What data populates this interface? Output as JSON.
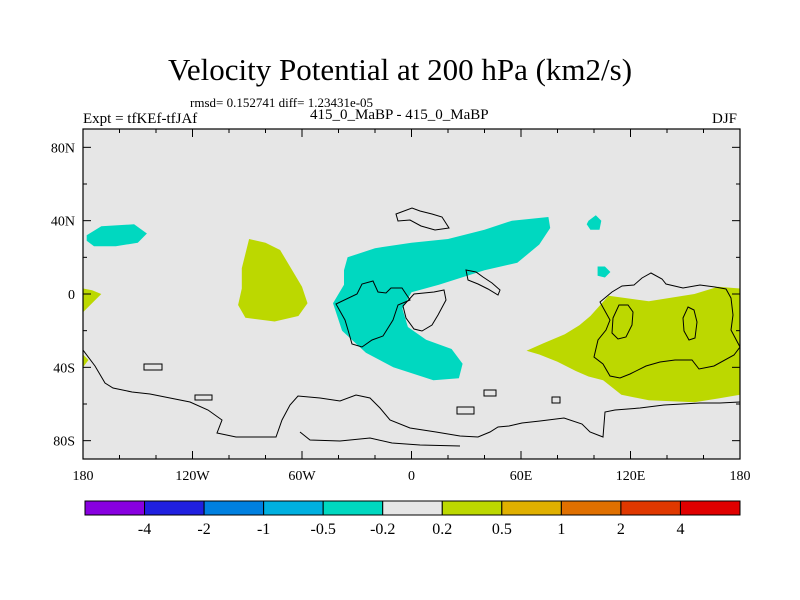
{
  "title": "Velocity Potential at 200 hPa (km2/s)",
  "stats": "rmsd= 0.152741  diff= 1.23431e-05",
  "left_label": "Expt = tfKEf-tfJAf",
  "center_label": "415_0_MaBP - 415_0_MaBP",
  "right_label": "DJF",
  "colors": {
    "background": "#e6e6e6",
    "cyan": "#00d8c0",
    "lime": "#bcd800"
  },
  "chart_data": {
    "type": "heatmap",
    "title": "Velocity Potential at 200 hPa (km2/s)",
    "projection": "cylindrical equidistant",
    "xlim": [
      -180,
      180
    ],
    "ylim": [
      -90,
      90
    ],
    "x_ticks": [
      {
        "value": -180,
        "label": "180"
      },
      {
        "value": -120,
        "label": "120W"
      },
      {
        "value": -60,
        "label": "60W"
      },
      {
        "value": 0,
        "label": "0"
      },
      {
        "value": 60,
        "label": "60E"
      },
      {
        "value": 120,
        "label": "120E"
      },
      {
        "value": 180,
        "label": "180"
      }
    ],
    "y_ticks": [
      {
        "value": 80,
        "label": "80N"
      },
      {
        "value": 40,
        "label": "40N"
      },
      {
        "value": 0,
        "label": "0"
      },
      {
        "value": -40,
        "label": "40S"
      },
      {
        "value": -80,
        "label": "80S"
      }
    ],
    "colorbar": {
      "levels": [
        "-4",
        "-2",
        "-1",
        "-0.5",
        "-0.2",
        "0.2",
        "0.5",
        "1",
        "2",
        "4"
      ],
      "colors": [
        "#8800e0",
        "#2020e0",
        "#0080e0",
        "#00b0e0",
        "#00d8c0",
        "#e6e6e6",
        "#bcd800",
        "#e0b000",
        "#e07000",
        "#e03800",
        "#e00000"
      ]
    },
    "regions": [
      {
        "band": "-0.5 to -0.2",
        "polygon": [
          [
            -178,
            32
          ],
          [
            -170,
            37
          ],
          [
            -152,
            38
          ],
          [
            -145,
            33
          ],
          [
            -150,
            28
          ],
          [
            -162,
            26
          ],
          [
            -174,
            26
          ],
          [
            -178,
            29
          ]
        ]
      },
      {
        "band": "-0.5 to -0.2",
        "polygon": [
          [
            -35,
            20
          ],
          [
            -20,
            25
          ],
          [
            0,
            28
          ],
          [
            20,
            30
          ],
          [
            40,
            35
          ],
          [
            55,
            40
          ],
          [
            75,
            42
          ],
          [
            76,
            36
          ],
          [
            70,
            27
          ],
          [
            58,
            17
          ],
          [
            40,
            13
          ],
          [
            15,
            5
          ],
          [
            0,
            1
          ],
          [
            -5,
            -8
          ],
          [
            -2,
            -18
          ],
          [
            8,
            -25
          ],
          [
            22,
            -30
          ],
          [
            28,
            -38
          ],
          [
            26,
            -46
          ],
          [
            12,
            -47
          ],
          [
            -10,
            -40
          ],
          [
            -25,
            -32
          ],
          [
            -38,
            -20
          ],
          [
            -43,
            -5
          ],
          [
            -37,
            5
          ],
          [
            -37,
            13
          ]
        ]
      },
      {
        "band": "-0.5 to -0.2",
        "polygon": [
          [
            97,
            40
          ],
          [
            101,
            43
          ],
          [
            104,
            40
          ],
          [
            103,
            35
          ],
          [
            98,
            35
          ],
          [
            96,
            38
          ]
        ]
      },
      {
        "band": "-0.5 to -0.2",
        "polygon": [
          [
            102,
            15
          ],
          [
            106,
            15
          ],
          [
            109,
            12
          ],
          [
            106,
            9
          ],
          [
            102,
            10
          ]
        ]
      },
      {
        "band": "0.2 to 0.5",
        "polygon": [
          [
            -89,
            30
          ],
          [
            -80,
            28
          ],
          [
            -72,
            24
          ],
          [
            -66,
            14
          ],
          [
            -60,
            4
          ],
          [
            -57,
            -5
          ],
          [
            -62,
            -12
          ],
          [
            -75,
            -15
          ],
          [
            -91,
            -13
          ],
          [
            -95,
            -6
          ],
          [
            -93,
            3
          ],
          [
            -93,
            14
          ]
        ]
      },
      {
        "band": "0.2 to 0.5",
        "polygon": [
          [
            -180,
            3
          ],
          [
            -175,
            2
          ],
          [
            -170,
            0
          ],
          [
            -174,
            -4
          ],
          [
            -180,
            -10
          ]
        ]
      },
      {
        "band": "0.2 to 0.5",
        "polygon": [
          [
            -180,
            -33
          ],
          [
            -177,
            -36
          ],
          [
            -180,
            -40
          ]
        ]
      },
      {
        "band": "0.2 to 0.5",
        "polygon": [
          [
            108,
            -1
          ],
          [
            130,
            -4
          ],
          [
            155,
            0
          ],
          [
            168,
            4
          ],
          [
            180,
            3
          ],
          [
            180,
            -55
          ],
          [
            168,
            -57
          ],
          [
            155,
            -59
          ],
          [
            130,
            -58
          ],
          [
            115,
            -55
          ],
          [
            105,
            -47
          ],
          [
            97,
            -45
          ],
          [
            90,
            -42
          ],
          [
            80,
            -37
          ],
          [
            70,
            -33
          ],
          [
            63,
            -31
          ],
          [
            72,
            -27
          ],
          [
            84,
            -22
          ],
          [
            92,
            -17
          ],
          [
            98,
            -12
          ]
        ]
      }
    ]
  }
}
